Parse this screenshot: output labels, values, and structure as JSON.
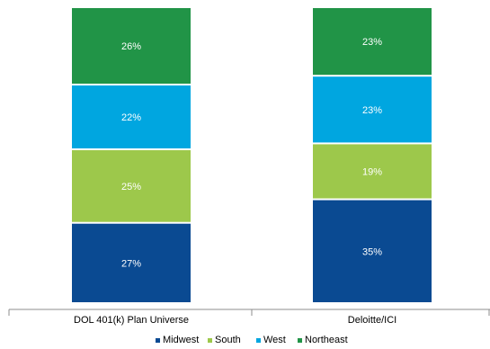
{
  "chart_data": {
    "type": "bar",
    "stacked": true,
    "categories": [
      "DOL 401(k) Plan Universe",
      "Deloitte/ICI"
    ],
    "series": [
      {
        "name": "Midwest",
        "values": [
          27,
          35
        ],
        "labels": [
          "27%",
          "35%"
        ],
        "color": "#0a4a92"
      },
      {
        "name": "South",
        "values": [
          25,
          19
        ],
        "labels": [
          "25%",
          "19%"
        ],
        "color": "#9dc84b"
      },
      {
        "name": "West",
        "values": [
          22,
          23
        ],
        "labels": [
          "22%",
          "23%"
        ],
        "color": "#00a6e0"
      },
      {
        "name": "Northeast",
        "values": [
          26,
          23
        ],
        "labels": [
          "26%",
          "23%"
        ],
        "color": "#219447"
      }
    ],
    "ylim": [
      0,
      100
    ],
    "grid": false,
    "legend_position": "bottom"
  }
}
